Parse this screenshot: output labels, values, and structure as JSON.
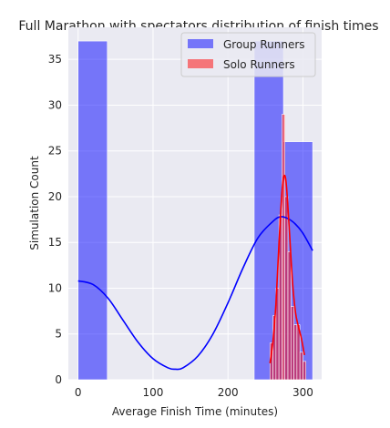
{
  "chart_data": {
    "type": "histogram",
    "title": "Full Marathon with spectators distribution of finish times",
    "xlabel": "Average Finish Time (minutes)",
    "ylabel": "Simulation Count",
    "xlim": [
      -13,
      325
    ],
    "ylim": [
      0,
      38.5
    ],
    "x_ticks": [
      0,
      100,
      200,
      300
    ],
    "y_ticks": [
      0,
      5,
      10,
      15,
      20,
      25,
      30,
      35
    ],
    "grid": true,
    "legend_position": "top-right",
    "colors": {
      "group": "#0000ff",
      "solo": "#ff0000",
      "background": "#eaeaf2",
      "grid": "#ffffff"
    },
    "series": [
      {
        "name": "Group Runners",
        "key": "group",
        "bars": [
          {
            "x0": 0,
            "x1": 39,
            "count": 37
          },
          {
            "x0": 39,
            "x1": 78,
            "count": 0
          },
          {
            "x0": 78,
            "x1": 117,
            "count": 0
          },
          {
            "x0": 117,
            "x1": 156,
            "count": 0
          },
          {
            "x0": 156,
            "x1": 195,
            "count": 0
          },
          {
            "x0": 195,
            "x1": 235,
            "count": 0
          },
          {
            "x0": 235,
            "x1": 274,
            "count": 37
          },
          {
            "x0": 274,
            "x1": 313,
            "count": 26
          }
        ],
        "kde": {
          "x": [
            0,
            20,
            40,
            60,
            80,
            100,
            120,
            130,
            140,
            160,
            180,
            200,
            220,
            240,
            260,
            270,
            280,
            290,
            300,
            313
          ],
          "y": [
            10.8,
            10.4,
            8.9,
            6.5,
            4.1,
            2.3,
            1.3,
            1.15,
            1.3,
            2.6,
            5.0,
            8.4,
            12.2,
            15.5,
            17.3,
            17.8,
            17.6,
            17.0,
            16.0,
            14.1
          ]
        }
      },
      {
        "name": "Solo Runners",
        "key": "solo",
        "bars": [
          {
            "x0": 256,
            "x1": 260,
            "count": 4
          },
          {
            "x0": 260,
            "x1": 264,
            "count": 7
          },
          {
            "x0": 264,
            "x1": 268,
            "count": 10
          },
          {
            "x0": 268,
            "x1": 272,
            "count": 18
          },
          {
            "x0": 272,
            "x1": 276,
            "count": 29
          },
          {
            "x0": 276,
            "x1": 280,
            "count": 20
          },
          {
            "x0": 280,
            "x1": 284,
            "count": 14
          },
          {
            "x0": 284,
            "x1": 288,
            "count": 8
          },
          {
            "x0": 288,
            "x1": 292,
            "count": 6
          },
          {
            "x0": 292,
            "x1": 296,
            "count": 6
          },
          {
            "x0": 296,
            "x1": 300,
            "count": 3
          },
          {
            "x0": 300,
            "x1": 304,
            "count": 2
          }
        ],
        "kde": {
          "x": [
            256,
            260,
            264,
            268,
            272,
            275,
            278,
            282,
            286,
            290,
            294,
            298,
            302
          ],
          "y": [
            1.8,
            4.2,
            8.3,
            14.8,
            20.5,
            22.3,
            21.2,
            16.2,
            10.8,
            7.4,
            5.8,
            4.5,
            2.7
          ]
        }
      }
    ]
  }
}
